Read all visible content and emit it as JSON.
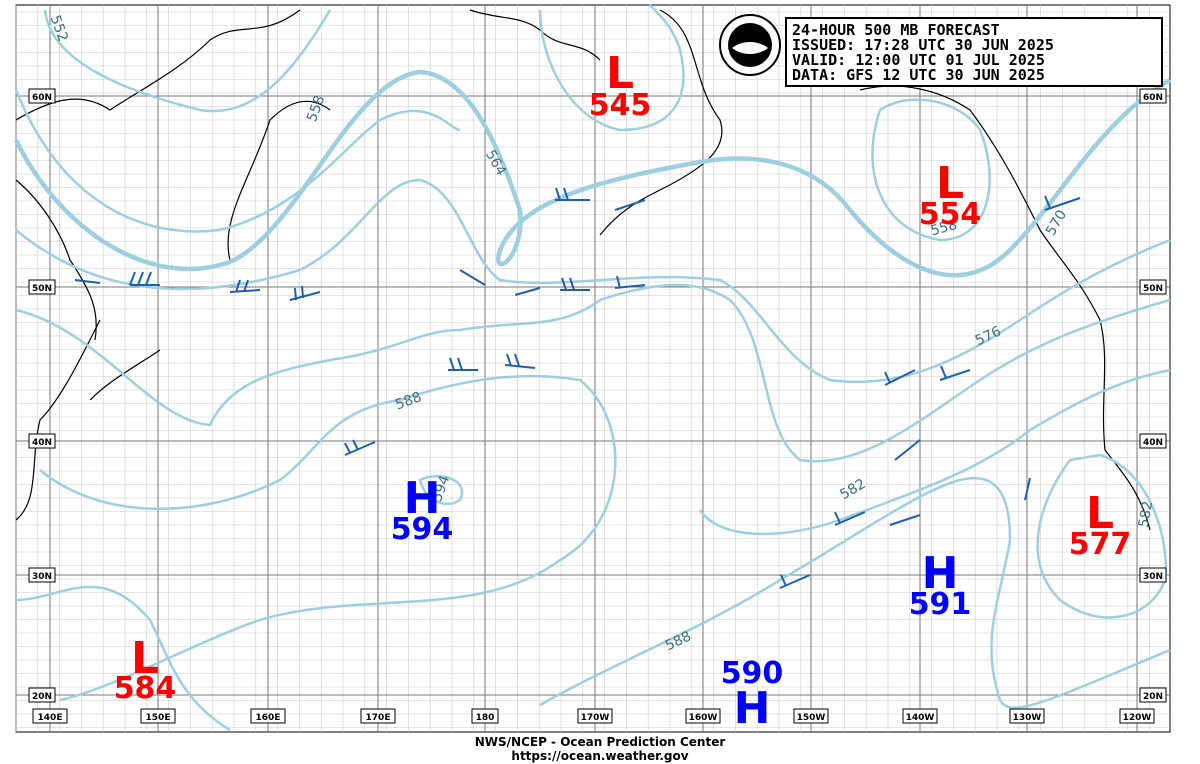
{
  "header": {
    "lines": [
      "24-HOUR 500 MB FORECAST",
      "ISSUED: 17:28 UTC 30 JUN 2025",
      "VALID:  12:00 UTC 01 JUL 2025",
      "DATA:  GFS 12 UTC 30 JUN 2025"
    ]
  },
  "centers": [
    {
      "type": "L",
      "value": 545
    },
    {
      "type": "L",
      "value": 554
    },
    {
      "type": "H",
      "value": 594
    },
    {
      "type": "L",
      "value": 577
    },
    {
      "type": "H",
      "value": 591
    },
    {
      "type": "L",
      "value": 584
    },
    {
      "type": "H",
      "value": 590
    }
  ],
  "contour_labels": [
    552,
    558,
    564,
    588,
    594,
    558,
    570,
    576,
    582,
    588,
    582
  ],
  "lat_labels": [
    "60N",
    "50N",
    "40N",
    "30N",
    "20N"
  ],
  "lon_labels": [
    "140E",
    "150E",
    "160E",
    "170E",
    "180",
    "170W",
    "160W",
    "150W",
    "140W",
    "130W",
    "120W"
  ],
  "footer": [
    "NWS/NCEP - Ocean Prediction Center",
    "https://ocean.weather.gov"
  ]
}
